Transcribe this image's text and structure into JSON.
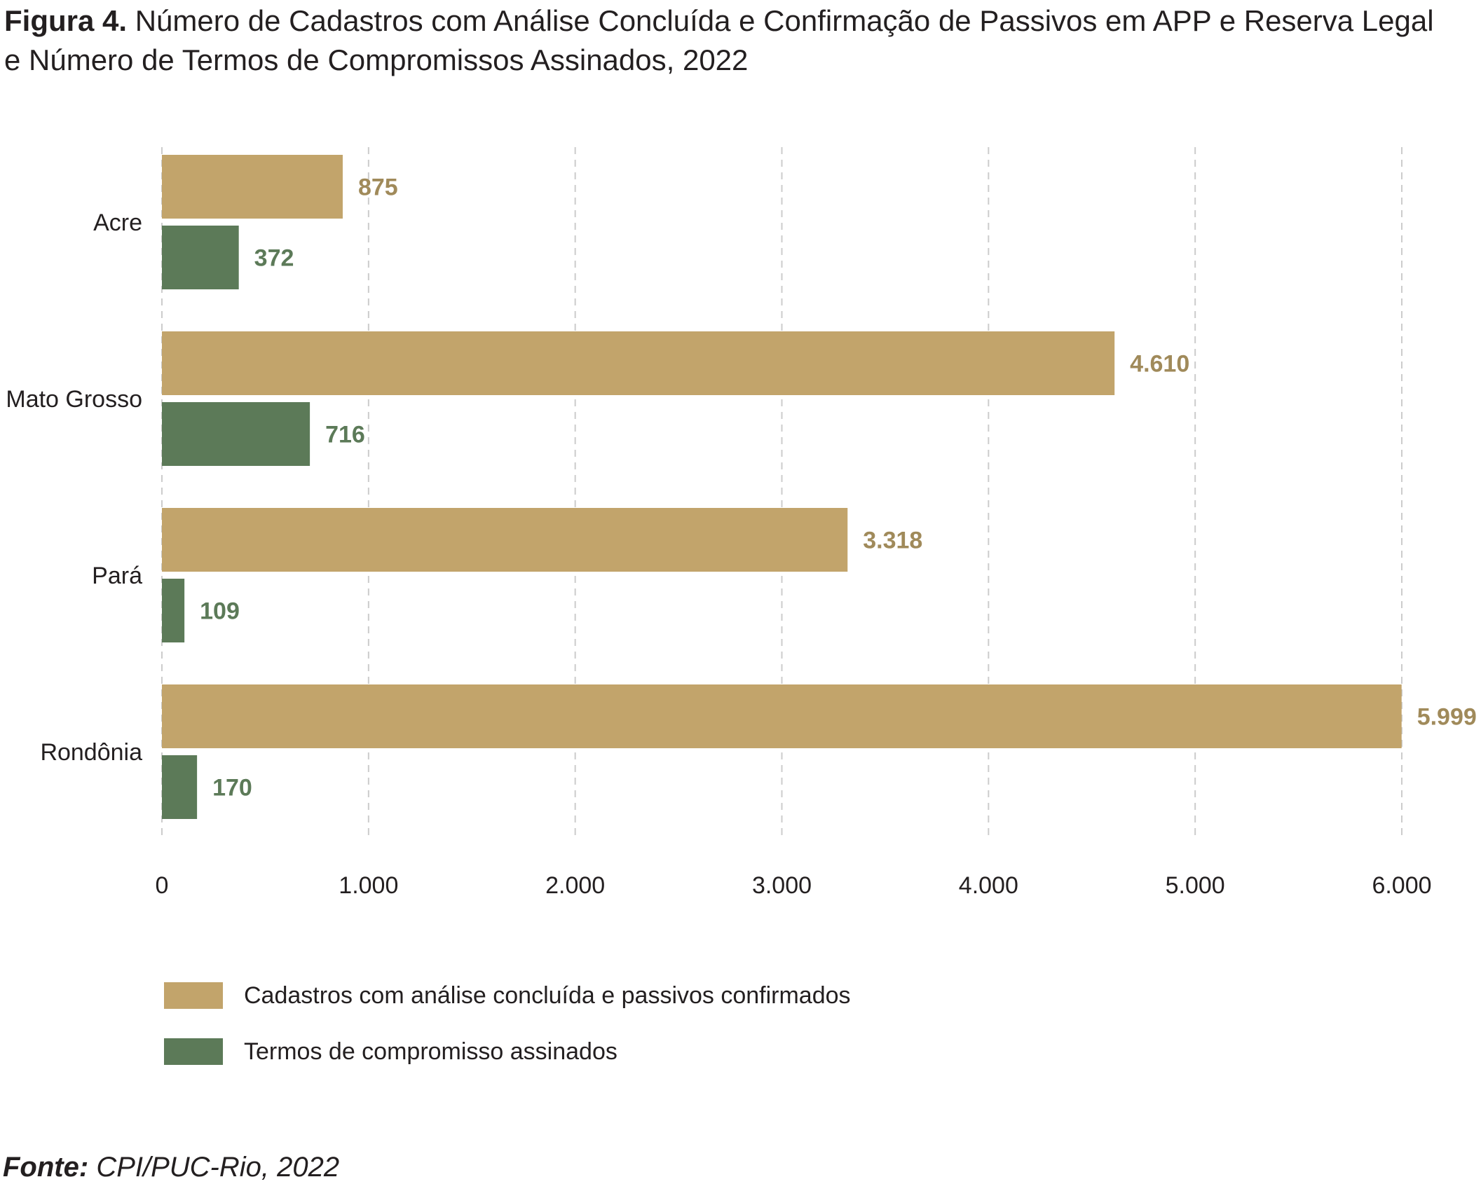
{
  "title": {
    "prefix": "Figura 4.",
    "text_line1": "Número de Cadastros com Análise Concluída e Confirmação de Passivos em APP e Reserva Legal",
    "text_line2": "e Número de Termos de Compromissos Assinados, 2022"
  },
  "source": {
    "prefix": "Fonte:",
    "text": "CPI/PUC-Rio, 2022"
  },
  "colors": {
    "tan": "#c2a46b",
    "tan_label": "#a08a5a",
    "green": "#5c7a58",
    "green_label": "#5c7a58",
    "grid": "#cccccc"
  },
  "chart_data": {
    "type": "bar",
    "orientation": "horizontal",
    "categories": [
      "Acre",
      "Mato Grosso",
      "Pará",
      "Rondônia"
    ],
    "series": [
      {
        "name": "Cadastros com análise concluída e passivos confirmados",
        "values": [
          875,
          4610,
          3318,
          5999
        ],
        "labels": [
          "875",
          "4.610",
          "3.318",
          "5.999"
        ],
        "color": "#c2a46b"
      },
      {
        "name": "Termos de compromisso assinados",
        "values": [
          372,
          716,
          109,
          170
        ],
        "labels": [
          "372",
          "716",
          "109",
          "170"
        ],
        "color": "#5c7a58"
      }
    ],
    "xlim": [
      0,
      6000
    ],
    "xticks": [
      0,
      1000,
      2000,
      3000,
      4000,
      5000,
      6000
    ],
    "xtick_labels": [
      "0",
      "1.000",
      "2.000",
      "3.000",
      "4.000",
      "5.000",
      "6.000"
    ],
    "grid": "vertical dashed",
    "legend_position": "bottom-left"
  }
}
